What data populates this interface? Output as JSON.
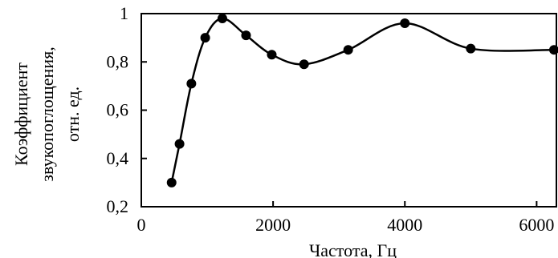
{
  "chart_data": {
    "type": "line",
    "title": "",
    "xlabel": "Частота, Гц",
    "ylabel_lines": [
      "Коэффициент",
      "звукопоглощения,",
      "отн. ед."
    ],
    "xlim": [
      0,
      6300
    ],
    "ylim": [
      0.2,
      1.0
    ],
    "x_ticks": [
      0,
      2000,
      4000,
      6000
    ],
    "x_tick_labels": [
      "0",
      "2000",
      "4000",
      "6000"
    ],
    "y_ticks": [
      0.2,
      0.4,
      0.6,
      0.8,
      1.0
    ],
    "y_tick_labels": [
      "0,2",
      "0,4",
      "0,6",
      "0,8",
      "1"
    ],
    "grid": false,
    "series": [
      {
        "marker": "circle",
        "color": "#000000",
        "x": [
          460,
          580,
          760,
          970,
          1230,
          1590,
          1980,
          2470,
          3140,
          4000,
          5000,
          6300
        ],
        "y": [
          0.3,
          0.46,
          0.71,
          0.9,
          0.98,
          0.91,
          0.83,
          0.79,
          0.85,
          0.96,
          0.855,
          0.85
        ]
      }
    ]
  }
}
